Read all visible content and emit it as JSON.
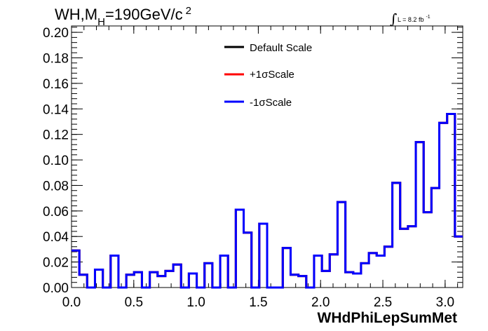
{
  "chart_data": {
    "type": "line",
    "title_parts": {
      "main": "WH,M",
      "sub": "H",
      "rest": "=190GeV/c",
      "sup": "2"
    },
    "lumi": {
      "main": "L = 8.2 fb",
      "sup": "-1"
    },
    "xlabel": "WHdPhiLepSumMet",
    "ylabel": "",
    "xlim": [
      0.0,
      3.1416
    ],
    "ylim": [
      0.0,
      0.205
    ],
    "x_ticks": [
      "0.0",
      "0.5",
      "1.0",
      "1.5",
      "2.0",
      "2.5",
      "3.0"
    ],
    "y_ticks": [
      "0.00",
      "0.02",
      "0.04",
      "0.06",
      "0.08",
      "0.10",
      "0.12",
      "0.14",
      "0.16",
      "0.18",
      "0.20"
    ],
    "bins": 50,
    "legend_position": "top-center",
    "series": [
      {
        "name": "Default Scale",
        "color": "#000000",
        "values": [
          0.029,
          0.01,
          0.0,
          0.014,
          0.0,
          0.025,
          0.0,
          0.01,
          0.012,
          0.0,
          0.012,
          0.009,
          0.013,
          0.018,
          0.0,
          0.011,
          0.0,
          0.019,
          0.0,
          0.025,
          0.0,
          0.061,
          0.043,
          0.0,
          0.05,
          0.0,
          0.0,
          0.031,
          0.01,
          0.009,
          0.0,
          0.025,
          0.013,
          0.026,
          0.067,
          0.012,
          0.011,
          0.019,
          0.027,
          0.025,
          0.032,
          0.082,
          0.046,
          0.048,
          0.114,
          0.059,
          0.078,
          0.129,
          0.136,
          0.04
        ]
      },
      {
        "name": "+1σScale",
        "color": "#ff0000",
        "values": [
          0.029,
          0.01,
          0.0,
          0.014,
          0.0,
          0.025,
          0.0,
          0.01,
          0.012,
          0.0,
          0.012,
          0.009,
          0.013,
          0.018,
          0.0,
          0.011,
          0.0,
          0.019,
          0.0,
          0.025,
          0.0,
          0.061,
          0.043,
          0.0,
          0.05,
          0.0,
          0.0,
          0.031,
          0.01,
          0.009,
          0.0,
          0.025,
          0.013,
          0.026,
          0.067,
          0.012,
          0.011,
          0.019,
          0.027,
          0.025,
          0.032,
          0.082,
          0.046,
          0.048,
          0.114,
          0.059,
          0.078,
          0.129,
          0.136,
          0.04
        ]
      },
      {
        "name": "-1σScale",
        "color": "#0000ff",
        "values": [
          0.029,
          0.01,
          0.0,
          0.014,
          0.0,
          0.025,
          0.0,
          0.01,
          0.012,
          0.0,
          0.012,
          0.009,
          0.013,
          0.018,
          0.0,
          0.011,
          0.0,
          0.019,
          0.0,
          0.025,
          0.0,
          0.061,
          0.043,
          0.0,
          0.05,
          0.0,
          0.0,
          0.031,
          0.01,
          0.009,
          0.0,
          0.025,
          0.013,
          0.026,
          0.067,
          0.012,
          0.011,
          0.019,
          0.027,
          0.025,
          0.032,
          0.082,
          0.046,
          0.048,
          0.114,
          0.059,
          0.078,
          0.129,
          0.136,
          0.04
        ]
      }
    ]
  }
}
